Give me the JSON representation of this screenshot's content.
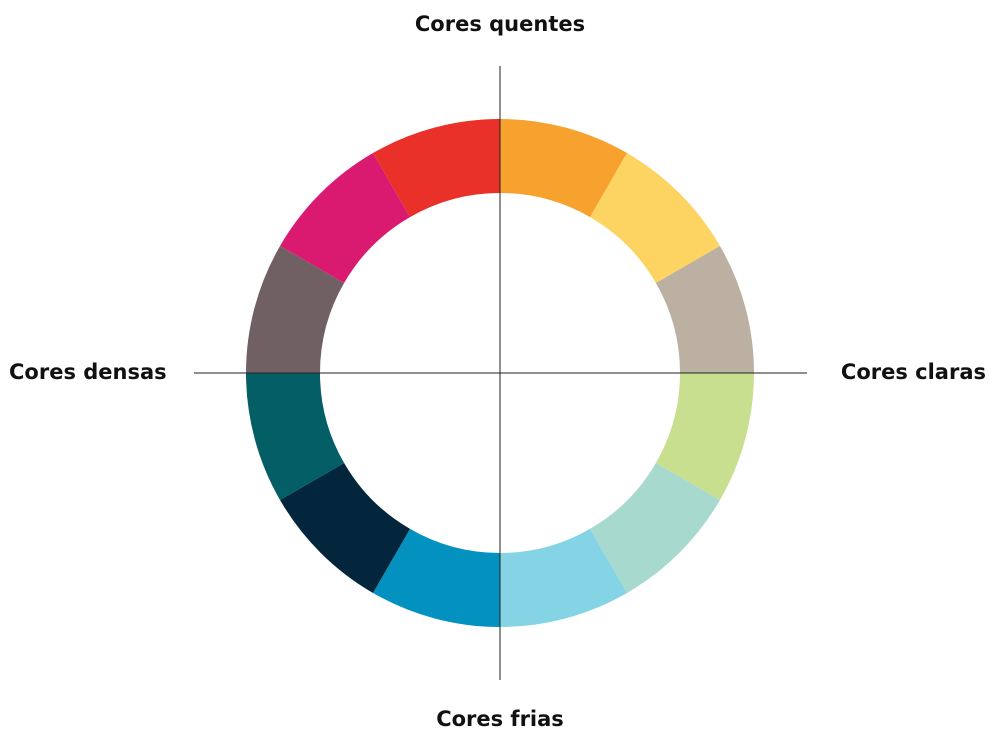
{
  "diagram": {
    "labels": {
      "top": "Cores quentes",
      "bottom": "Cores frias",
      "left": "Cores densas",
      "right": "Cores claras"
    },
    "segments": [
      {
        "color": "#F7A12E"
      },
      {
        "color": "#FDD461"
      },
      {
        "color": "#BBB0A2"
      },
      {
        "color": "#C7DF8E"
      },
      {
        "color": "#A8D9CE"
      },
      {
        "color": "#85D4E6"
      },
      {
        "color": "#0391BF"
      },
      {
        "color": "#03263D"
      },
      {
        "color": "#035E66"
      },
      {
        "color": "#706064"
      },
      {
        "color": "#D91A70"
      },
      {
        "color": "#E93029"
      }
    ]
  }
}
